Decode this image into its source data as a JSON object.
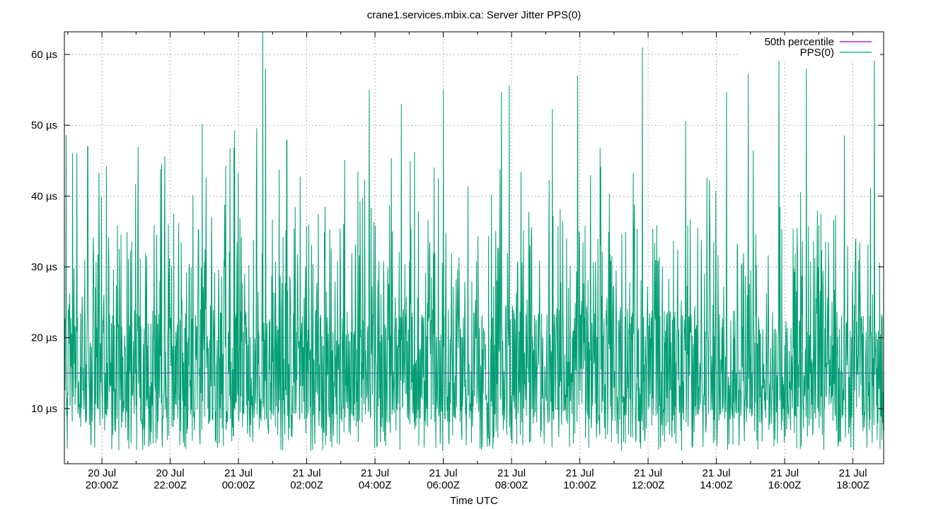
{
  "chart_data": {
    "type": "line",
    "title": "crane1.services.mbix.ca: Server Jitter PPS(0)",
    "xlabel": "Time UTC",
    "ylabel": "",
    "x_range": [
      "2025-07-20T18:54Z",
      "2025-07-21T18:54Z"
    ],
    "ylim": [
      2.2,
      63.2
    ],
    "y_ticks": [
      {
        "value": 10,
        "label": "10 µs"
      },
      {
        "value": 20,
        "label": "20 µs"
      },
      {
        "value": 30,
        "label": "30 µs"
      },
      {
        "value": 40,
        "label": "40 µs"
      },
      {
        "value": 50,
        "label": "50 µs"
      },
      {
        "value": 60,
        "label": "60 µs"
      }
    ],
    "x_ticks": [
      {
        "value": "2025-07-20T20:00Z",
        "date": "20 Jul",
        "time": "20:00Z"
      },
      {
        "value": "2025-07-20T22:00Z",
        "date": "20 Jul",
        "time": "22:00Z"
      },
      {
        "value": "2025-07-21T00:00Z",
        "date": "21 Jul",
        "time": "00:00Z"
      },
      {
        "value": "2025-07-21T02:00Z",
        "date": "21 Jul",
        "time": "02:00Z"
      },
      {
        "value": "2025-07-21T04:00Z",
        "date": "21 Jul",
        "time": "04:00Z"
      },
      {
        "value": "2025-07-21T06:00Z",
        "date": "21 Jul",
        "time": "06:00Z"
      },
      {
        "value": "2025-07-21T08:00Z",
        "date": "21 Jul",
        "time": "08:00Z"
      },
      {
        "value": "2025-07-21T10:00Z",
        "date": "21 Jul",
        "time": "10:00Z"
      },
      {
        "value": "2025-07-21T12:00Z",
        "date": "21 Jul",
        "time": "12:00Z"
      },
      {
        "value": "2025-07-21T14:00Z",
        "date": "21 Jul",
        "time": "14:00Z"
      },
      {
        "value": "2025-07-21T16:00Z",
        "date": "21 Jul",
        "time": "16:00Z"
      },
      {
        "value": "2025-07-21T18:00Z",
        "date": "21 Jul",
        "time": "18:00Z"
      }
    ],
    "grid": true,
    "legend_position": "top-right",
    "series": [
      {
        "name": "50th percentile",
        "color": "#9400d3",
        "kind": "constant",
        "value": 15.0
      },
      {
        "name": "PPS(0)",
        "color": "#009e73",
        "kind": "noisy",
        "baseline": 15.0,
        "min": 2.5,
        "max": 63.2,
        "peaks": [
          {
            "x": "2025-07-20T18:57Z",
            "y": 48.6
          },
          {
            "x": "2025-07-20T19:35Z",
            "y": 47.0
          },
          {
            "x": "2025-07-20T19:55Z",
            "y": 43.3
          },
          {
            "x": "2025-07-20T20:08Z",
            "y": 44.2
          },
          {
            "x": "2025-07-20T21:45Z",
            "y": 44.5
          },
          {
            "x": "2025-07-20T22:56Z",
            "y": 50.2
          },
          {
            "x": "2025-07-20T23:53Z",
            "y": 49.3
          },
          {
            "x": "2025-07-21T00:32Z",
            "y": 49.6
          },
          {
            "x": "2025-07-21T00:43Z",
            "y": 63.2
          },
          {
            "x": "2025-07-21T00:48Z",
            "y": 58.0
          },
          {
            "x": "2025-07-21T01:25Z",
            "y": 47.9
          },
          {
            "x": "2025-07-21T03:50Z",
            "y": 55.0
          },
          {
            "x": "2025-07-21T04:46Z",
            "y": 53.0
          },
          {
            "x": "2025-07-21T06:00Z",
            "y": 55.0
          },
          {
            "x": "2025-07-21T07:42Z",
            "y": 54.7
          },
          {
            "x": "2025-07-21T07:56Z",
            "y": 55.6
          },
          {
            "x": "2025-07-21T09:12Z",
            "y": 52.3
          },
          {
            "x": "2025-07-21T09:56Z",
            "y": 57.0
          },
          {
            "x": "2025-07-21T11:50Z",
            "y": 61.0
          },
          {
            "x": "2025-07-21T13:06Z",
            "y": 50.6
          },
          {
            "x": "2025-07-21T14:18Z",
            "y": 54.7
          },
          {
            "x": "2025-07-21T14:56Z",
            "y": 57.3
          },
          {
            "x": "2025-07-21T15:50Z",
            "y": 60.5
          },
          {
            "x": "2025-07-21T16:38Z",
            "y": 58.0
          },
          {
            "x": "2025-07-21T17:45Z",
            "y": 48.6
          },
          {
            "x": "2025-07-21T18:38Z",
            "y": 62.0
          }
        ]
      }
    ]
  }
}
